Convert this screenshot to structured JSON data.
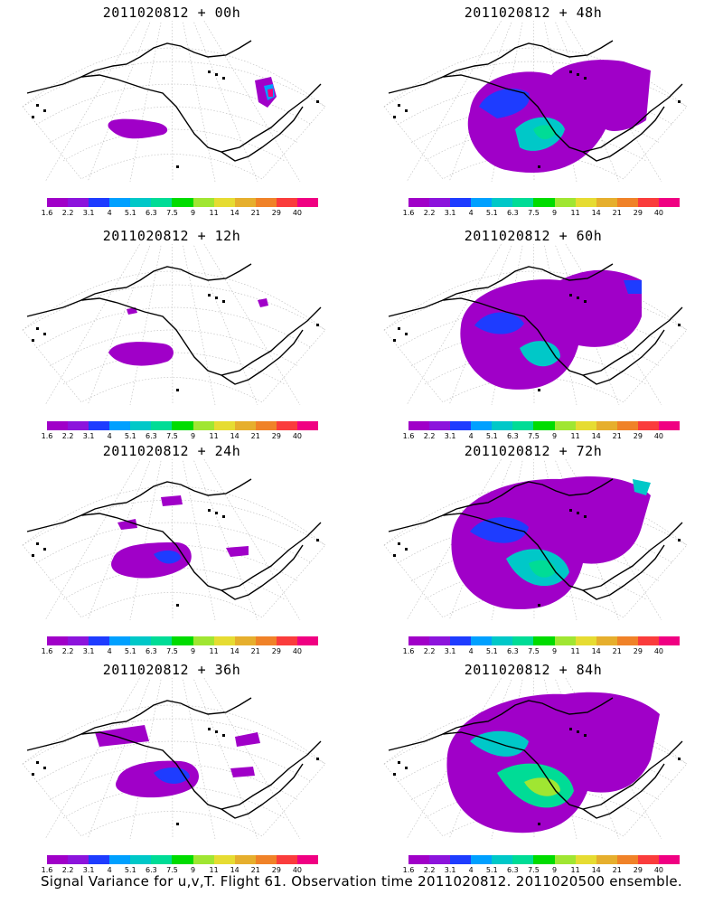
{
  "footer_caption": "Signal Variance for u,v,T. Flight 61. Observation time 2011020812. 2011020500 ensemble.",
  "colorbar": {
    "levels": [
      "1.6",
      "2.2",
      "3.1",
      "4",
      "5.1",
      "6.3",
      "7.5",
      "9",
      "11",
      "14",
      "21",
      "29",
      "40"
    ],
    "colors": [
      "#a000c8",
      "#8c14dc",
      "#1e3cff",
      "#00a0ff",
      "#00c8c8",
      "#00dc96",
      "#00dc00",
      "#a0e632",
      "#e6dc32",
      "#e6af2d",
      "#f08228",
      "#fa3c3c",
      "#f00082"
    ]
  },
  "chart_data": [
    {
      "type": "heatmap",
      "title": "2011020812 + 00h",
      "lead_hours": 0,
      "max_level": "40",
      "colorbar_levels": [
        "1.6",
        "2.2",
        "3.1",
        "4",
        "5.1",
        "6.3",
        "7.5",
        "9",
        "11",
        "14",
        "21",
        "29",
        "40"
      ]
    },
    {
      "type": "heatmap",
      "title": "2011020812 + 48h",
      "lead_hours": 48,
      "max_level": "5.1",
      "colorbar_levels": [
        "1.6",
        "2.2",
        "3.1",
        "4",
        "5.1",
        "6.3",
        "7.5",
        "9",
        "11",
        "14",
        "21",
        "29",
        "40"
      ]
    },
    {
      "type": "heatmap",
      "title": "2011020812 + 12h",
      "lead_hours": 12,
      "max_level": "2.2",
      "colorbar_levels": [
        "1.6",
        "2.2",
        "3.1",
        "4",
        "5.1",
        "6.3",
        "7.5",
        "9",
        "11",
        "14",
        "21",
        "29",
        "40"
      ]
    },
    {
      "type": "heatmap",
      "title": "2011020812 + 60h",
      "lead_hours": 60,
      "max_level": "5.1",
      "colorbar_levels": [
        "1.6",
        "2.2",
        "3.1",
        "4",
        "5.1",
        "6.3",
        "7.5",
        "9",
        "11",
        "14",
        "21",
        "29",
        "40"
      ]
    },
    {
      "type": "heatmap",
      "title": "2011020812 + 24h",
      "lead_hours": 24,
      "max_level": "3.1",
      "colorbar_levels": [
        "1.6",
        "2.2",
        "3.1",
        "4",
        "5.1",
        "6.3",
        "7.5",
        "9",
        "11",
        "14",
        "21",
        "29",
        "40"
      ]
    },
    {
      "type": "heatmap",
      "title": "2011020812 + 72h",
      "lead_hours": 72,
      "max_level": "6.3",
      "colorbar_levels": [
        "1.6",
        "2.2",
        "3.1",
        "4",
        "5.1",
        "6.3",
        "7.5",
        "9",
        "11",
        "14",
        "21",
        "29",
        "40"
      ]
    },
    {
      "type": "heatmap",
      "title": "2011020812 + 36h",
      "lead_hours": 36,
      "max_level": "4",
      "colorbar_levels": [
        "1.6",
        "2.2",
        "3.1",
        "4",
        "5.1",
        "6.3",
        "7.5",
        "9",
        "11",
        "14",
        "21",
        "29",
        "40"
      ]
    },
    {
      "type": "heatmap",
      "title": "2011020812 + 84h",
      "lead_hours": 84,
      "max_level": "7.5",
      "colorbar_levels": [
        "1.6",
        "2.2",
        "3.1",
        "4",
        "5.1",
        "6.3",
        "7.5",
        "9",
        "11",
        "14",
        "21",
        "29",
        "40"
      ]
    }
  ]
}
